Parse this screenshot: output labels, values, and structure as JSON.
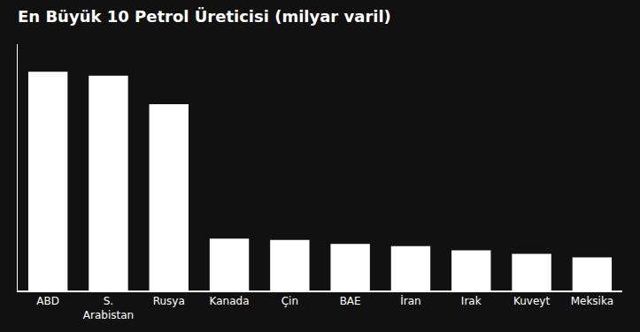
{
  "chart_data": {
    "type": "bar",
    "title": "En Büyük 10 Petrol Üreticisi (milyar varil)",
    "categories": [
      "ABD",
      "S.\nArabistan",
      "Rusya",
      "Kanada",
      "Çin",
      "BAE",
      "İran",
      "Irak",
      "Kuveyt",
      "Meksika"
    ],
    "values": [
      728,
      715,
      620,
      173,
      168,
      155,
      148,
      134,
      122,
      110
    ],
    "color": "#ffffff",
    "ylim": [
      0,
      820
    ],
    "grid": false,
    "tick_labels": "x"
  }
}
